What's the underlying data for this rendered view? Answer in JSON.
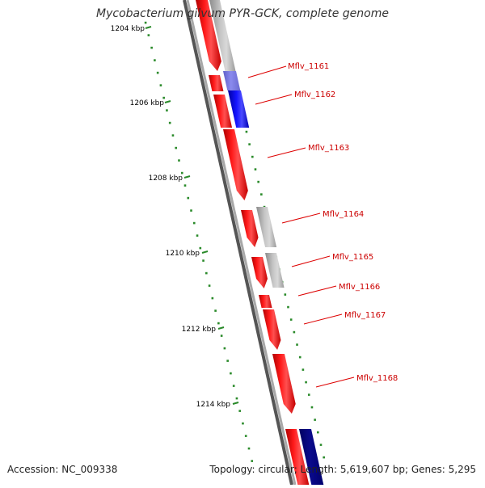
{
  "title": "Mycobacterium gilvum PYR-GCK, complete genome",
  "accession_text": "Accession: NC_009338",
  "summary_text": "Topology: circular; Length: 5,619,607 bp; Genes: 5,295",
  "colors": {
    "gene_forward": "#ff1a1a",
    "gene_other": "#b5b5b5",
    "gene_blue": "#1414ff",
    "gene_dark_blue": "#0a0a8c",
    "axis": "#808080",
    "gc_marks": "#2a8a2a",
    "label_text": "#cc0000"
  },
  "scale_labels": [
    "1204 kbp",
    "1206 kbp",
    "1208 kbp",
    "1210 kbp",
    "1212 kbp",
    "1214 kbp"
  ],
  "gene_labels": [
    "Mflv_1161",
    "Mflv_1162",
    "Mflv_1163",
    "Mflv_1164",
    "Mflv_1165",
    "Mflv_1166",
    "Mflv_1167",
    "Mflv_1168"
  ]
}
